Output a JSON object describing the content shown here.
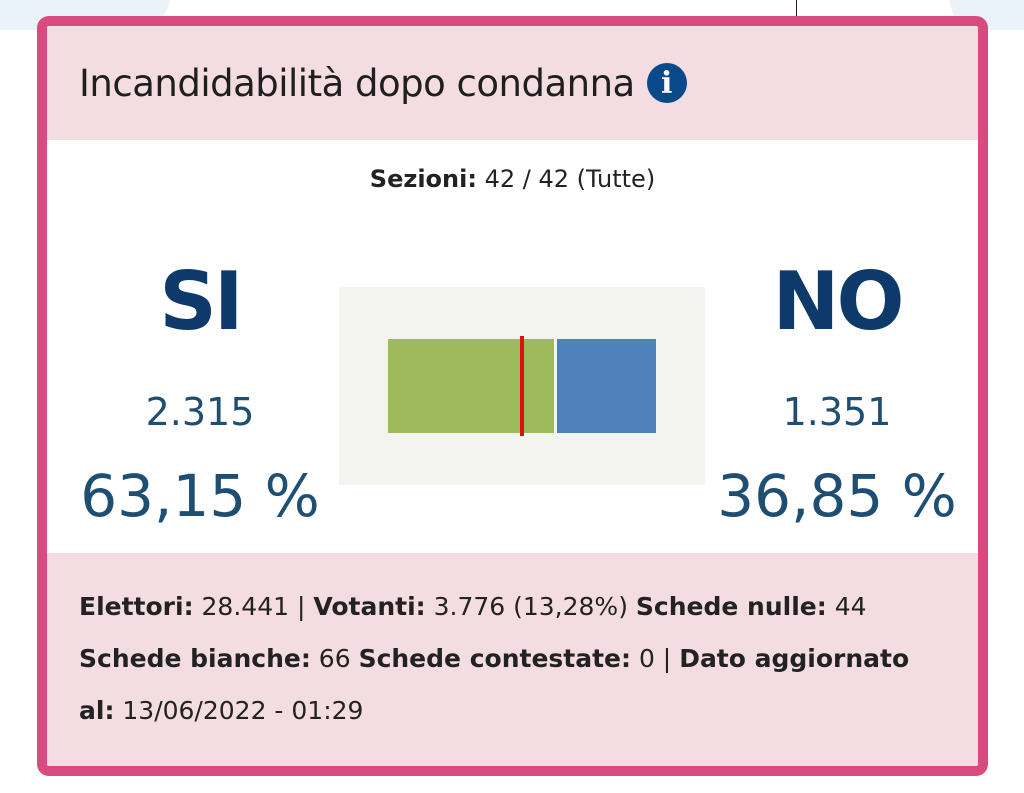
{
  "title": "Incandidabilità dopo condanna",
  "info_icon": "i",
  "sezioni": {
    "label": "Sezioni:",
    "value": "42 / 42 (Tutte)"
  },
  "si": {
    "label": "SI",
    "votes": "2.315",
    "percent": "63,15 %",
    "fraction": 0.6315
  },
  "no": {
    "label": "NO",
    "votes": "1.351",
    "percent": "36,85 %",
    "fraction": 0.3685
  },
  "colors": {
    "si": "#9dbb5a",
    "no": "#4f81bd",
    "threshold": "#e01010",
    "border": "#d94a7f"
  },
  "footer": {
    "elettori_label": "Elettori:",
    "elettori": "28.441 |",
    "votanti_label": "Votanti:",
    "votanti": "3.776 (13,28%)",
    "nulle_label": "Schede nulle:",
    "nulle": "44",
    "bianche_label": "Schede bianche:",
    "bianche": "66",
    "contestate_label": "Schede contestate:",
    "contestate": "0 |",
    "aggiornato_label": "Dato aggiornato al:",
    "aggiornato": "13/06/2022 - 01:29"
  }
}
